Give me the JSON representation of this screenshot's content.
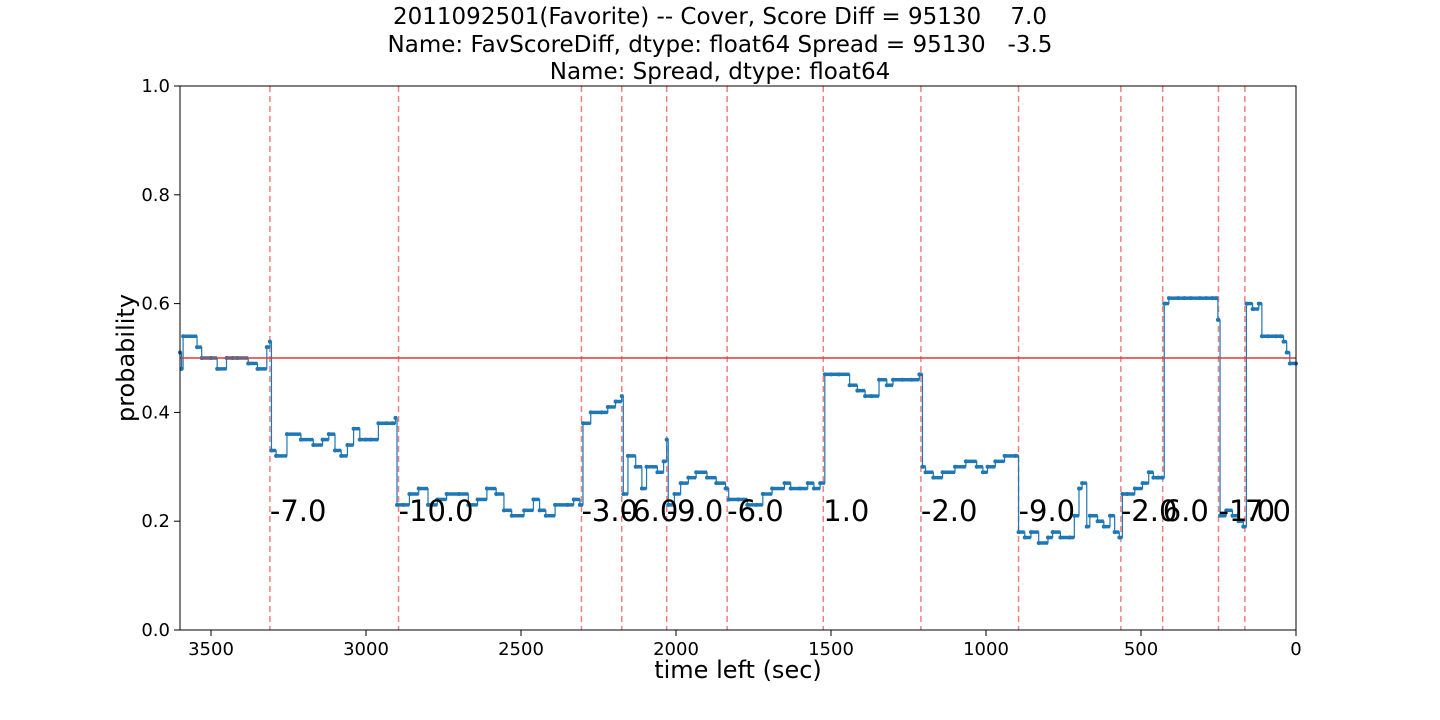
{
  "title_lines": [
    "2011092501(Favorite) -- Cover, Score Diff = 95130    7.0",
    "Name: FavScoreDiff, dtype: float64 Spread = 95130   -3.5",
    "Name: Spread, dtype: float64"
  ],
  "chart_data": {
    "type": "line",
    "xlabel": "time left (sec)",
    "ylabel": "probability",
    "xlim": [
      3600,
      0
    ],
    "ylim": [
      0.0,
      1.0
    ],
    "x_ticks": [
      3500,
      3000,
      2500,
      2000,
      1500,
      1000,
      500,
      0
    ],
    "y_ticks": [
      "0.0",
      "0.2",
      "0.4",
      "0.6",
      "0.8",
      "1.0"
    ],
    "reference_line": {
      "y": 0.5,
      "color": "#e03c31"
    },
    "series": [
      {
        "color": "#1f77b4",
        "step": true,
        "points": [
          [
            3600,
            0.51
          ],
          [
            3595,
            0.48
          ],
          [
            3590,
            0.54
          ],
          [
            3545,
            0.52
          ],
          [
            3530,
            0.5
          ],
          [
            3500,
            0.5
          ],
          [
            3480,
            0.48
          ],
          [
            3450,
            0.5
          ],
          [
            3430,
            0.5
          ],
          [
            3415,
            0.5
          ],
          [
            3380,
            0.49
          ],
          [
            3350,
            0.48
          ],
          [
            3320,
            0.52
          ],
          [
            3310,
            0.53
          ],
          [
            3305,
            0.33
          ],
          [
            3290,
            0.32
          ],
          [
            3255,
            0.36
          ],
          [
            3210,
            0.35
          ],
          [
            3170,
            0.34
          ],
          [
            3140,
            0.35
          ],
          [
            3120,
            0.36
          ],
          [
            3100,
            0.33
          ],
          [
            3080,
            0.32
          ],
          [
            3060,
            0.34
          ],
          [
            3040,
            0.37
          ],
          [
            3020,
            0.35
          ],
          [
            3000,
            0.35
          ],
          [
            2985,
            0.35
          ],
          [
            2960,
            0.38
          ],
          [
            2935,
            0.38
          ],
          [
            2915,
            0.38
          ],
          [
            2905,
            0.39
          ],
          [
            2900,
            0.23
          ],
          [
            2880,
            0.23
          ],
          [
            2860,
            0.25
          ],
          [
            2830,
            0.26
          ],
          [
            2800,
            0.23
          ],
          [
            2770,
            0.24
          ],
          [
            2740,
            0.25
          ],
          [
            2700,
            0.25
          ],
          [
            2670,
            0.23
          ],
          [
            2640,
            0.24
          ],
          [
            2610,
            0.26
          ],
          [
            2580,
            0.25
          ],
          [
            2555,
            0.22
          ],
          [
            2530,
            0.21
          ],
          [
            2490,
            0.22
          ],
          [
            2460,
            0.24
          ],
          [
            2440,
            0.22
          ],
          [
            2420,
            0.21
          ],
          [
            2390,
            0.23
          ],
          [
            2350,
            0.23
          ],
          [
            2330,
            0.24
          ],
          [
            2310,
            0.23
          ],
          [
            2300,
            0.38
          ],
          [
            2275,
            0.4
          ],
          [
            2240,
            0.4
          ],
          [
            2220,
            0.41
          ],
          [
            2195,
            0.42
          ],
          [
            2175,
            0.43
          ],
          [
            2170,
            0.25
          ],
          [
            2155,
            0.32
          ],
          [
            2130,
            0.3
          ],
          [
            2110,
            0.26
          ],
          [
            2095,
            0.3
          ],
          [
            2060,
            0.29
          ],
          [
            2040,
            0.31
          ],
          [
            2030,
            0.35
          ],
          [
            2025,
            0.23
          ],
          [
            2005,
            0.25
          ],
          [
            1985,
            0.27
          ],
          [
            1960,
            0.28
          ],
          [
            1935,
            0.29
          ],
          [
            1900,
            0.28
          ],
          [
            1870,
            0.27
          ],
          [
            1840,
            0.26
          ],
          [
            1830,
            0.24
          ],
          [
            1800,
            0.24
          ],
          [
            1770,
            0.23
          ],
          [
            1740,
            0.23
          ],
          [
            1720,
            0.25
          ],
          [
            1690,
            0.26
          ],
          [
            1650,
            0.27
          ],
          [
            1630,
            0.26
          ],
          [
            1600,
            0.26
          ],
          [
            1575,
            0.27
          ],
          [
            1555,
            0.26
          ],
          [
            1535,
            0.27
          ],
          [
            1520,
            0.47
          ],
          [
            1500,
            0.47
          ],
          [
            1475,
            0.47
          ],
          [
            1440,
            0.45
          ],
          [
            1415,
            0.44
          ],
          [
            1390,
            0.43
          ],
          [
            1370,
            0.43
          ],
          [
            1345,
            0.46
          ],
          [
            1320,
            0.45
          ],
          [
            1300,
            0.46
          ],
          [
            1270,
            0.46
          ],
          [
            1240,
            0.46
          ],
          [
            1215,
            0.47
          ],
          [
            1205,
            0.3
          ],
          [
            1195,
            0.29
          ],
          [
            1170,
            0.28
          ],
          [
            1140,
            0.29
          ],
          [
            1100,
            0.3
          ],
          [
            1065,
            0.31
          ],
          [
            1030,
            0.3
          ],
          [
            1010,
            0.29
          ],
          [
            995,
            0.3
          ],
          [
            970,
            0.31
          ],
          [
            940,
            0.32
          ],
          [
            905,
            0.32
          ],
          [
            895,
            0.18
          ],
          [
            875,
            0.17
          ],
          [
            855,
            0.18
          ],
          [
            830,
            0.16
          ],
          [
            800,
            0.17
          ],
          [
            785,
            0.18
          ],
          [
            760,
            0.17
          ],
          [
            730,
            0.17
          ],
          [
            715,
            0.21
          ],
          [
            700,
            0.26
          ],
          [
            690,
            0.27
          ],
          [
            675,
            0.19
          ],
          [
            665,
            0.21
          ],
          [
            640,
            0.2
          ],
          [
            620,
            0.19
          ],
          [
            600,
            0.21
          ],
          [
            585,
            0.18
          ],
          [
            570,
            0.17
          ],
          [
            560,
            0.25
          ],
          [
            545,
            0.25
          ],
          [
            520,
            0.26
          ],
          [
            495,
            0.27
          ],
          [
            475,
            0.29
          ],
          [
            460,
            0.28
          ],
          [
            445,
            0.28
          ],
          [
            432,
            0.28
          ],
          [
            425,
            0.6
          ],
          [
            410,
            0.61
          ],
          [
            380,
            0.61
          ],
          [
            360,
            0.61
          ],
          [
            340,
            0.61
          ],
          [
            310,
            0.61
          ],
          [
            290,
            0.61
          ],
          [
            270,
            0.61
          ],
          [
            258,
            0.61
          ],
          [
            252,
            0.57
          ],
          [
            245,
            0.21
          ],
          [
            225,
            0.22
          ],
          [
            205,
            0.21
          ],
          [
            185,
            0.2
          ],
          [
            170,
            0.19
          ],
          [
            160,
            0.6
          ],
          [
            140,
            0.59
          ],
          [
            120,
            0.6
          ],
          [
            110,
            0.54
          ],
          [
            90,
            0.54
          ],
          [
            65,
            0.54
          ],
          [
            50,
            0.54
          ],
          [
            40,
            0.53
          ],
          [
            30,
            0.51
          ],
          [
            20,
            0.49
          ],
          [
            0,
            0.49
          ]
        ]
      }
    ],
    "score_changes": [
      {
        "x": 3310,
        "label": "-7.0"
      },
      {
        "x": 2895,
        "label": "-10.0"
      },
      {
        "x": 2305,
        "label": "-3.0"
      },
      {
        "x": 2175,
        "label": "-6.0"
      },
      {
        "x": 2030,
        "label": "-9.0"
      },
      {
        "x": 1835,
        "label": "-6.0"
      },
      {
        "x": 1525,
        "label": "1.0"
      },
      {
        "x": 1210,
        "label": "-2.0"
      },
      {
        "x": 895,
        "label": "-9.0"
      },
      {
        "x": 565,
        "label": "-2.0"
      },
      {
        "x": 430,
        "label": "6.0"
      },
      {
        "x": 250,
        "label": "-1.0"
      },
      {
        "x": 165,
        "label": "7.0"
      }
    ],
    "score_change_line_color": "#f08080"
  }
}
